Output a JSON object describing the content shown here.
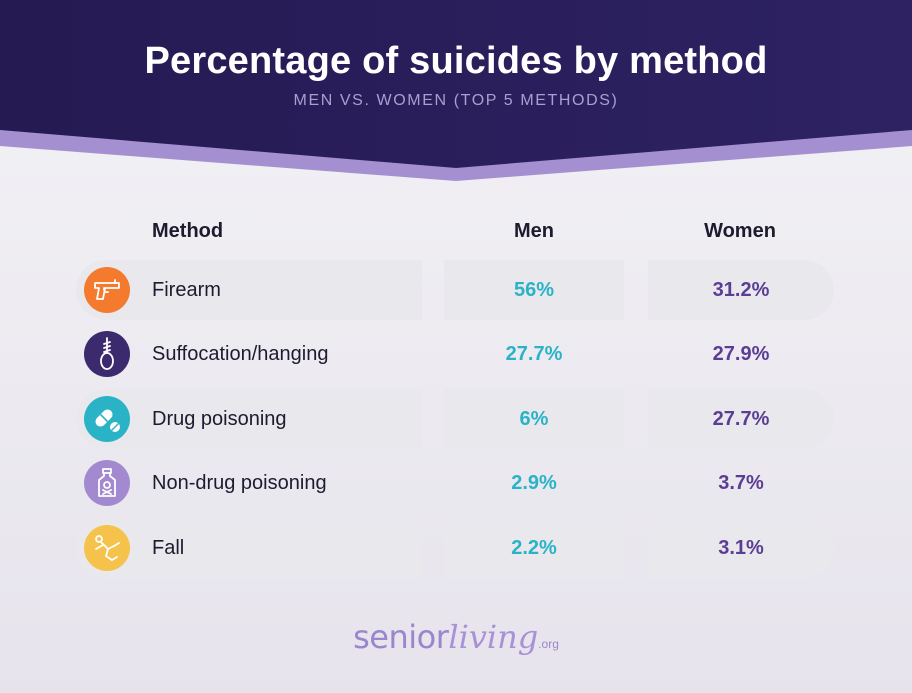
{
  "header": {
    "title": "Percentage of suicides by method",
    "subtitle": "MEN VS. WOMEN (TOP 5 METHODS)"
  },
  "columns": {
    "method": "Method",
    "men": "Men",
    "women": "Women"
  },
  "rows": [
    {
      "method": "Firearm",
      "men": "56%",
      "women": "31.2%",
      "icon": "gun-icon",
      "icon_color": "#f47a2e"
    },
    {
      "method": "Suffocation/hanging",
      "men": "27.7%",
      "women": "27.9%",
      "icon": "noose-icon",
      "icon_color": "#3b2a6e"
    },
    {
      "method": "Drug poisoning",
      "men": "6%",
      "women": "27.7%",
      "icon": "pills-icon",
      "icon_color": "#2ab3c7"
    },
    {
      "method": "Non-drug poisoning",
      "men": "2.9%",
      "women": "3.7%",
      "icon": "poison-bottle-icon",
      "icon_color": "#a38ad0"
    },
    {
      "method": "Fall",
      "men": "2.2%",
      "women": "3.1%",
      "icon": "falling-person-icon",
      "icon_color": "#f5c24c"
    }
  ],
  "chart_data": {
    "type": "table",
    "title": "Percentage of suicides by method",
    "subtitle": "MEN VS. WOMEN (TOP 5 METHODS)",
    "columns": [
      "Method",
      "Men",
      "Women"
    ],
    "categories": [
      "Firearm",
      "Suffocation/hanging",
      "Drug poisoning",
      "Non-drug poisoning",
      "Fall"
    ],
    "series": [
      {
        "name": "Men",
        "values": [
          56,
          27.7,
          6,
          2.9,
          2.2
        ]
      },
      {
        "name": "Women",
        "values": [
          31.2,
          27.9,
          27.7,
          3.7,
          3.1
        ]
      }
    ],
    "unit": "%"
  },
  "brand": {
    "main": "senior",
    "script": "living",
    "suffix": ".org"
  },
  "colors": {
    "header_dark": "#241a4f",
    "header_band": "#a48fd0",
    "men_accent": "#2ab3c7",
    "women_accent": "#5b3d94"
  }
}
